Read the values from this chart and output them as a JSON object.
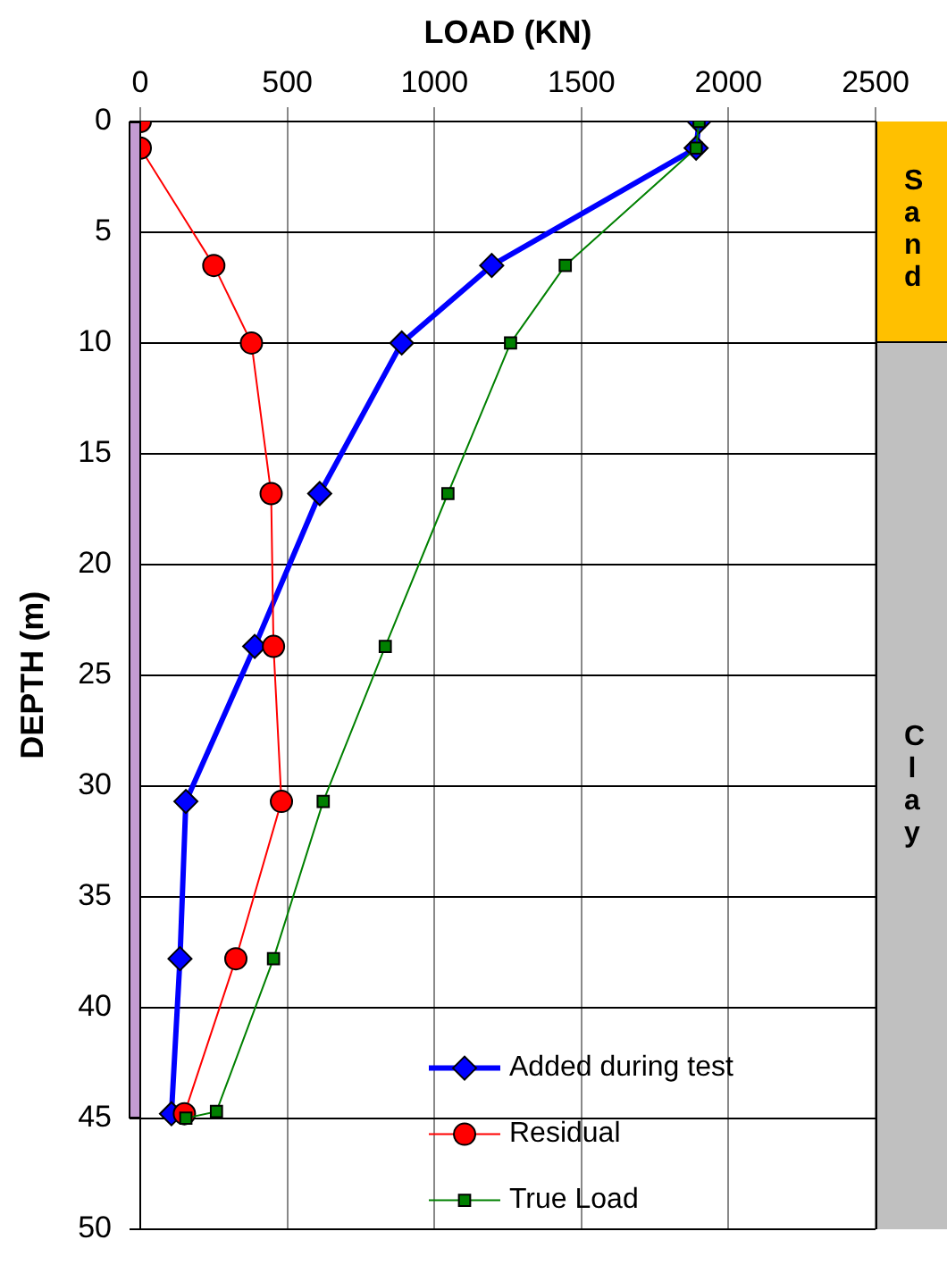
{
  "chart_data": {
    "type": "line",
    "xlabel": "LOAD (KN)",
    "ylabel": "DEPTH (m)",
    "xlim": [
      0,
      2500
    ],
    "xticks": [
      0,
      500,
      1000,
      1500,
      2000,
      2500
    ],
    "ylim": [
      50,
      0
    ],
    "yticks": [
      0,
      5,
      10,
      15,
      20,
      25,
      30,
      35,
      40,
      45,
      50
    ],
    "grid": true,
    "legend": "bottom right",
    "line_style": "solid",
    "series": [
      {
        "name": "Added during test",
        "color": "#0000ff",
        "marker": "diamond",
        "x": [
          1900,
          1890,
          1195,
          889,
          610,
          389,
          155,
          135,
          106
        ],
        "values": [
          0,
          1.2,
          6.5,
          10,
          16.8,
          23.7,
          30.7,
          37.8,
          44.8
        ]
      },
      {
        "name": "Residual",
        "color": "#ff0000",
        "marker": "circle",
        "x": [
          0,
          0,
          250,
          378,
          445,
          453,
          480,
          325,
          150
        ],
        "values": [
          0,
          1.2,
          6.5,
          10,
          16.8,
          23.7,
          30.7,
          37.8,
          44.8
        ]
      },
      {
        "name": "True Load",
        "color": "#008000",
        "marker": "square",
        "x": [
          1900,
          1890,
          1445,
          1259,
          1046,
          833,
          622,
          453,
          259,
          155
        ],
        "values": [
          0,
          1.2,
          6.5,
          10,
          16.8,
          23.7,
          30.7,
          37.8,
          44.7,
          45
        ]
      }
    ],
    "annotations": [
      "Sand",
      "Clay"
    ]
  }
}
